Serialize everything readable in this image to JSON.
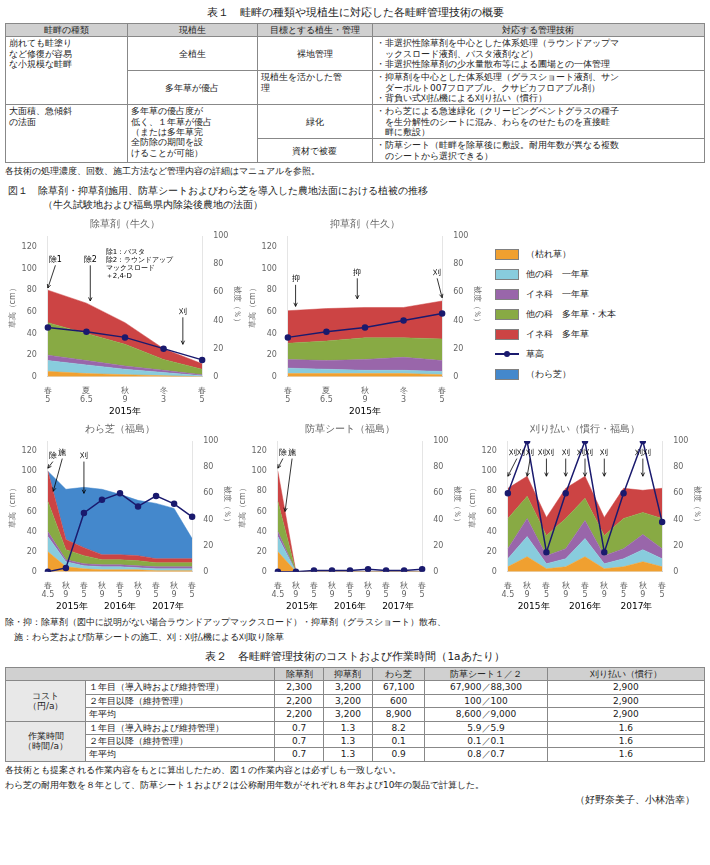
{
  "table1": {
    "title": "表１　畦畔の種類や現植生に対応した各畦畔管理技術の概要",
    "headers": [
      "畦畔の種類",
      "現植生",
      "目標とする植生・管理",
      "対応する管理技術"
    ],
    "rows": [
      [
        {
          "text": "崩れても畦塗り\nなど修復が容易\nな小規模な畦畔",
          "rowspan": 2
        },
        "全植生",
        "裸地管理",
        "・非選択性除草剤を中心とした体系処理（ラウンドアップマ\n　ックスロード液剤、バスタ液剤など）\n・非選択性除草剤の少水量散布等による圃場との一体管理"
      ],
      [
        "多年草が優占",
        "現植生を活かした管\n理",
        "・抑草剤を中心とした体系処理（グラスショート液剤、サン\n　ダーボルト007フロアブル、クサビカフロアブル剤）\n・背負い式刈払機による刈り払い（慣行）"
      ],
      [
        {
          "text": "大面積、急傾斜\nの法面",
          "rowspan": 2
        },
        {
          "text": "多年草の優占度が\n低く、１年草が優占\n（または多年草完\n全防除の期間を設\nけることが可能）",
          "rowspan": 2
        },
        "緑化",
        "・わら芝による急速緑化（クリーピングベントグラスの種子\n　を生分解性のシートに混み、わらをのせたものを直接畦\n　畔に敷設）"
      ],
      [
        "資材で被覆",
        "・防草シート（畦畔を除草後に敷設。耐用年数が異なる複数\n　のシートから選択できる）"
      ]
    ],
    "note": "各技術の処理濃度、回数、施工方法など管理内容の詳細はマニュアルを参照。"
  },
  "figure": {
    "title": "図１　除草剤・抑草剤施用、防草シートおよびわら芝を導入した農地法面における植被の推移",
    "subtitle": "（牛久試験地および福島県内除染後農地の法面）",
    "notes": [
      "除・抑：除草剤（図中に説明がない場合ラウンドアップマックスロード）・抑草剤（グラスショート）散布、",
      "　施：わら芝および防草シートの施工、刈：刈払機による刈取り除草"
    ]
  },
  "chart_data": [
    {
      "type": "area",
      "stacked": true,
      "grid": false,
      "title": "除草剤（牛久）",
      "categories": [
        "春\n5",
        "夏\n6.5",
        "秋\n9",
        "冬\n3",
        "春\n5"
      ],
      "x_groups": [
        "2015年"
      ],
      "ylabel": "草高（cm）",
      "y2label": "被度（％）",
      "ylim": [
        0,
        130
      ],
      "yticks": [
        0,
        20,
        40,
        60,
        80,
        100,
        120
      ],
      "y2lim": [
        0,
        100
      ],
      "y2ticks": [
        0,
        20,
        40,
        60,
        80,
        100
      ],
      "series": [
        {
          "name": "（枯れ草）",
          "color": "#f0a030",
          "values": [
            5,
            3,
            2,
            1,
            0
          ]
        },
        {
          "name": "他の科　一年草",
          "color": "#88ccdd",
          "values": [
            10,
            8,
            5,
            3,
            1
          ]
        },
        {
          "name": "イネ科　一年草",
          "color": "#9966aa",
          "values": [
            5,
            4,
            3,
            2,
            1
          ]
        },
        {
          "name": "他の科　多年草・木本",
          "color": "#88aa44",
          "values": [
            30,
            25,
            20,
            10,
            5
          ]
        },
        {
          "name": "イネ科　多年草",
          "color": "#cc4444",
          "values": [
            30,
            28,
            20,
            10,
            5
          ]
        },
        {
          "name": "草高",
          "type": "line",
          "marker": "circle",
          "axis": "y2",
          "color": "#1a1a6e",
          "values": [
            35,
            32,
            28,
            20,
            12
          ]
        }
      ],
      "annotations": [
        {
          "text": "除1",
          "x": 0,
          "y": 82,
          "text_x": -0.2,
          "text_y": 108
        },
        {
          "text": "除2",
          "x": 1.1,
          "y": 70,
          "text_x": 1.1,
          "text_y": 108
        },
        {
          "text": "刈",
          "x": 3.5,
          "y": 30,
          "text_x": 3.5,
          "text_y": 60
        },
        {
          "text": "除1：バスタ\n除2：ラウンドアップ\nマックスロード\n＋2,4-D",
          "text_x": 1.5,
          "text_y": 118
        }
      ]
    },
    {
      "type": "area",
      "stacked": true,
      "grid": false,
      "title": "抑草剤（牛久）",
      "categories": [
        "春\n5",
        "夏\n6.5",
        "秋\n9",
        "冬\n3",
        "春\n5"
      ],
      "x_groups": [
        "2015年"
      ],
      "ylabel": "草高（cm）",
      "y2label": "被度（％）",
      "ylim": [
        0,
        130
      ],
      "yticks": [
        0,
        20,
        40,
        60,
        80,
        100,
        120
      ],
      "y2lim": [
        0,
        100
      ],
      "y2ticks": [
        0,
        20,
        40,
        60,
        80,
        100
      ],
      "series": [
        {
          "name": "（枯れ草）",
          "color": "#f0a030",
          "values": [
            3,
            3,
            3,
            3,
            2
          ]
        },
        {
          "name": "他の科　一年草",
          "color": "#88ccdd",
          "values": [
            5,
            4,
            3,
            3,
            3
          ]
        },
        {
          "name": "イネ科　一年草",
          "color": "#9966aa",
          "values": [
            8,
            8,
            10,
            12,
            10
          ]
        },
        {
          "name": "他の科　多年草・木本",
          "color": "#88aa44",
          "values": [
            15,
            18,
            20,
            18,
            20
          ]
        },
        {
          "name": "イネ科　多年草",
          "color": "#cc4444",
          "values": [
            30,
            30,
            28,
            28,
            35
          ]
        },
        {
          "name": "草高",
          "type": "line",
          "marker": "circle",
          "axis": "y2",
          "color": "#1a1a6e",
          "values": [
            28,
            32,
            35,
            40,
            45
          ]
        }
      ],
      "annotations": [
        {
          "text": "抑",
          "x": 0.2,
          "y": 65,
          "text_x": 0.2,
          "text_y": 90
        },
        {
          "text": "抑",
          "x": 1.8,
          "y": 72,
          "text_x": 1.8,
          "text_y": 96
        },
        {
          "text": "刈",
          "x": 4,
          "y": 73,
          "text_x": 4,
          "text_y": 96
        }
      ]
    },
    {
      "type": "area",
      "stacked": true,
      "grid": false,
      "title": "わら芝（福島）",
      "categories": [
        "春\n4.5",
        "秋\n9",
        "春\n5",
        "秋\n9",
        "春\n5",
        "秋\n9",
        "春\n5",
        "秋\n9",
        "春\n5"
      ],
      "x_groups": [
        "2015年",
        "2016年",
        "2017年"
      ],
      "ylabel": "草高（cm）",
      "y2label": "被度（％）",
      "ylim": [
        0,
        130
      ],
      "yticks": [
        0,
        20,
        40,
        60,
        80,
        100,
        120
      ],
      "y2lim": [
        0,
        100
      ],
      "y2ticks": [
        0,
        20,
        40,
        60,
        80,
        100
      ],
      "series": [
        {
          "name": "（枯れ草）",
          "color": "#f0a030",
          "values": [
            20,
            5,
            3,
            2,
            2,
            2,
            1,
            1,
            1
          ]
        },
        {
          "name": "他の科　一年草",
          "color": "#88ccdd",
          "values": [
            15,
            5,
            3,
            3,
            3,
            2,
            2,
            2,
            2
          ]
        },
        {
          "name": "イネ科　一年草",
          "color": "#9966aa",
          "values": [
            5,
            2,
            2,
            2,
            2,
            2,
            2,
            2,
            2
          ]
        },
        {
          "name": "他の科　多年草・木本",
          "color": "#88aa44",
          "values": [
            30,
            10,
            8,
            5,
            5,
            5,
            4,
            4,
            4
          ]
        },
        {
          "name": "イネ科　多年草",
          "color": "#cc4444",
          "values": [
            30,
            10,
            8,
            5,
            5,
            5,
            4,
            4,
            4
          ]
        },
        {
          "name": "（わら芝）",
          "color": "#4488cc",
          "values": [
            0,
            50,
            60,
            65,
            60,
            55,
            55,
            50,
            20
          ]
        },
        {
          "name": "草高",
          "type": "line",
          "marker": "circle",
          "axis": "y2",
          "color": "#1a1a6e",
          "values": [
            0,
            3,
            45,
            55,
            60,
            50,
            58,
            52,
            42
          ]
        }
      ],
      "annotations": [
        {
          "text": "除",
          "x": 0,
          "y": 103,
          "text_x": -0.5,
          "text_y": 115
        },
        {
          "text": "施",
          "x": 0.3,
          "y": 80,
          "text_x": 0.3,
          "text_y": 118
        },
        {
          "text": "刈",
          "x": 2,
          "y": 78,
          "text_x": 2,
          "text_y": 115
        }
      ]
    },
    {
      "type": "area",
      "stacked": true,
      "grid": false,
      "title": "防草シート（福島）",
      "categories": [
        "春\n4.5",
        "秋\n9",
        "春\n5",
        "秋\n9",
        "春\n5",
        "秋\n9",
        "春\n5",
        "秋\n9",
        "春\n5"
      ],
      "x_groups": [
        "2015年",
        "2016年",
        "2017年"
      ],
      "ylabel": "草高（cm）",
      "y2label": "被度（％）",
      "ylim": [
        0,
        130
      ],
      "yticks": [
        0,
        20,
        40,
        60,
        80,
        100,
        120
      ],
      "y2lim": [
        0,
        100
      ],
      "y2ticks": [
        0,
        20,
        40,
        60,
        80,
        100
      ],
      "series": [
        {
          "name": "（枯れ草）",
          "color": "#f0a030",
          "values": [
            20,
            0,
            0,
            0,
            0,
            0,
            0,
            0,
            0
          ]
        },
        {
          "name": "他の科　一年草",
          "color": "#88ccdd",
          "values": [
            15,
            0,
            0,
            0,
            0,
            0,
            0,
            0,
            0
          ]
        },
        {
          "name": "イネ科　一年草",
          "color": "#9966aa",
          "values": [
            5,
            0,
            0,
            0,
            0,
            0,
            0,
            0,
            0
          ]
        },
        {
          "name": "他の科　多年草・木本",
          "color": "#88aa44",
          "values": [
            30,
            0,
            0,
            0,
            0,
            0,
            0,
            0,
            0
          ]
        },
        {
          "name": "イネ科　多年草",
          "color": "#cc4444",
          "values": [
            30,
            0,
            0,
            0,
            0,
            0,
            0,
            0,
            0
          ]
        },
        {
          "name": "草高",
          "type": "line",
          "marker": "circle",
          "axis": "y2",
          "color": "#1a1a6e",
          "values": [
            0,
            0,
            1,
            1,
            1,
            2,
            1,
            1,
            2
          ]
        }
      ],
      "annotations": [
        {
          "text": "除",
          "x": 0,
          "y": 103,
          "text_x": -0.5,
          "text_y": 118
        },
        {
          "text": "施",
          "x": 0.4,
          "y": 60,
          "text_x": 0.4,
          "text_y": 118
        }
      ]
    },
    {
      "type": "area",
      "stacked": true,
      "grid": false,
      "title": "刈り払い（慣行・福島）",
      "categories": [
        "春\n4.5",
        "秋\n9",
        "春\n5",
        "秋\n9",
        "春\n5",
        "秋\n9",
        "春\n5",
        "秋\n9",
        "春\n5"
      ],
      "x_groups": [
        "2015年",
        "2016年",
        "2017年"
      ],
      "ylabel": "草高（cm）",
      "y2label": "被度（％）",
      "ylim": [
        0,
        130
      ],
      "yticks": [
        0,
        20,
        40,
        60,
        80,
        100,
        120
      ],
      "y2lim": [
        0,
        100
      ],
      "y2ticks": [
        0,
        20,
        40,
        60,
        80,
        100
      ],
      "series": [
        {
          "name": "（枯れ草）",
          "color": "#f0a030",
          "values": [
            5,
            15,
            3,
            5,
            15,
            3,
            5,
            10,
            5
          ]
        },
        {
          "name": "他の科　一年草",
          "color": "#88ccdd",
          "values": [
            8,
            20,
            5,
            8,
            18,
            5,
            8,
            12,
            8
          ]
        },
        {
          "name": "イネ科　一年草",
          "color": "#9966aa",
          "values": [
            10,
            18,
            8,
            10,
            18,
            8,
            10,
            15,
            10
          ]
        },
        {
          "name": "他の科　多年草・木本",
          "color": "#88aa44",
          "values": [
            30,
            22,
            20,
            30,
            22,
            20,
            30,
            22,
            30
          ]
        },
        {
          "name": "イネ科　多年草",
          "color": "#cc4444",
          "values": [
            30,
            20,
            18,
            30,
            22,
            18,
            30,
            22,
            30
          ]
        },
        {
          "name": "草高",
          "type": "line",
          "marker": "circle",
          "axis": "y2",
          "color": "#1a1a6e",
          "values": [
            60,
            100,
            15,
            60,
            100,
            15,
            60,
            100,
            38
          ]
        }
      ],
      "annotations": [
        {
          "text": "刈刈",
          "x": 0,
          "y": 95,
          "text_x": 0,
          "text_y": 118
        },
        {
          "text": "刈",
          "x": 1,
          "y": 95,
          "text_x": 1,
          "text_y": 118
        },
        {
          "text": "刈刈",
          "x": 2,
          "y": 95,
          "text_x": 2,
          "text_y": 118
        },
        {
          "text": "刈",
          "x": 3,
          "y": 95,
          "text_x": 3,
          "text_y": 118
        },
        {
          "text": "刈刈",
          "x": 4,
          "y": 95,
          "text_x": 4,
          "text_y": 118
        },
        {
          "text": "刈",
          "x": 5,
          "y": 95,
          "text_x": 5,
          "text_y": 118
        },
        {
          "text": "刈刈",
          "x": 7,
          "y": 95,
          "text_x": 7,
          "text_y": 118
        }
      ]
    }
  ],
  "table2": {
    "title": "表２　各畦畔管理技術のコストおよび作業時間（1aあたり）",
    "headers": [
      "除草剤",
      "抑草剤",
      "わら芝",
      "防草シート１／２",
      "刈り払い（慣行）"
    ],
    "groups": [
      {
        "label": "コスト\n（円/a）",
        "rows": [
          {
            "label": "１年目（導入時および維持管理）",
            "values": [
              "2,300",
              "3,200",
              "67,100",
              "67,900／88,300",
              "2,900"
            ]
          },
          {
            "label": "２年目以降（維持管理）",
            "values": [
              "2,200",
              "3,200",
              "600",
              "100／100",
              "2,900"
            ]
          },
          {
            "label": "年平均",
            "values": [
              "2,200",
              "3,200",
              "8,900",
              "8,600／9,000",
              "2,900"
            ]
          }
        ]
      },
      {
        "label": "作業時間\n（時間/a）",
        "rows": [
          {
            "label": "１年目（導入時および維持管理）",
            "values": [
              "0.7",
              "1.3",
              "8.2",
              "5.9／5.9",
              "1.6"
            ]
          },
          {
            "label": "２年目以降（維持管理）",
            "values": [
              "0.7",
              "1.3",
              "0.1",
              "0.1／0.1",
              "1.6"
            ]
          },
          {
            "label": "年平均",
            "values": [
              "0.7",
              "1.3",
              "0.9",
              "0.8／0.7",
              "1.6"
            ]
          }
        ]
      }
    ],
    "notes": [
      "各技術とも提案される作業内容をもとに算出したため、図１の作業内容とは必ずしも一致しない。",
      "わら芝の耐用年数を８年として、防草シート１および２は公称耐用年数がそれぞれ８年および10年の製品で計算した。"
    ]
  },
  "author": "（好野奈美子、小林浩幸）"
}
